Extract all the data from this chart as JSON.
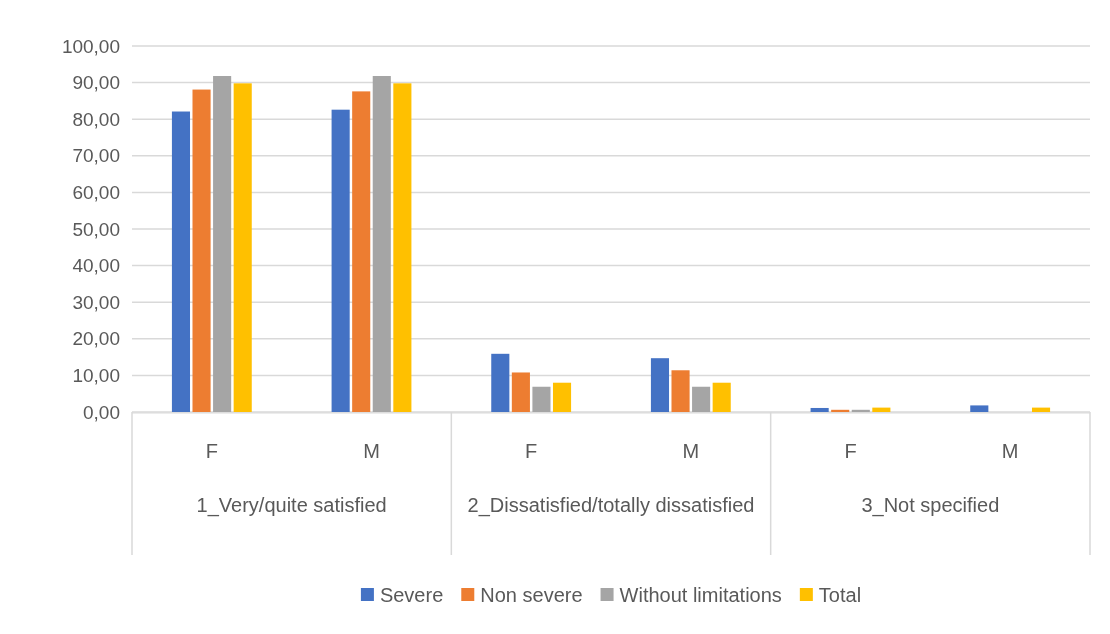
{
  "chart_data": {
    "type": "bar",
    "categories": [
      "F",
      "M",
      "F",
      "M",
      "F",
      "M"
    ],
    "series": [
      {
        "name": "Severe",
        "color": "#4472c4",
        "values": [
          82.1,
          82.6,
          15.9,
          14.7,
          1.1,
          1.8
        ]
      },
      {
        "name": "Non severe",
        "color": "#ed7d31",
        "values": [
          88.1,
          87.6,
          10.8,
          11.4,
          0.6,
          0
        ]
      },
      {
        "name": "Without limitations",
        "color": "#a5a5a5",
        "values": [
          91.8,
          91.8,
          6.9,
          6.9,
          0.6,
          0
        ]
      },
      {
        "name": "Total",
        "color": "#ffc000",
        "values": [
          89.8,
          89.8,
          8.0,
          8.0,
          1.2,
          1.2
        ]
      }
    ],
    "annotations": [
      "1_Very/quite satisfied",
      "2_Dissatisfied/totally dissatisfied",
      "3_Not specified"
    ],
    "ylim": [
      0,
      100
    ],
    "yticks": [
      {
        "value": 0,
        "label": "0,00"
      },
      {
        "value": 10,
        "label": "10,00"
      },
      {
        "value": 20,
        "label": "20,00"
      },
      {
        "value": 30,
        "label": "30,00"
      },
      {
        "value": 40,
        "label": "40,00"
      },
      {
        "value": 50,
        "label": "50,00"
      },
      {
        "value": 60,
        "label": "60,00"
      },
      {
        "value": 70,
        "label": "70,00"
      },
      {
        "value": 80,
        "label": "80,00"
      },
      {
        "value": 90,
        "label": "90,00"
      },
      {
        "value": 100,
        "label": "100,00"
      }
    ],
    "grid": "y",
    "legend": "bottom"
  }
}
